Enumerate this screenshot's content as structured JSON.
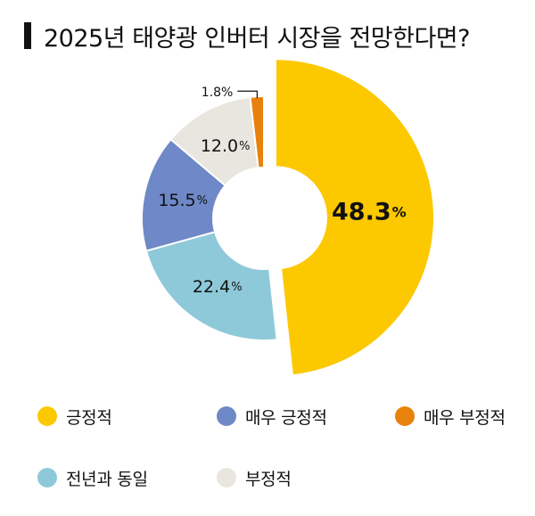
{
  "title": "2025년 태양광 인버터 시장을 전망한다면?",
  "chart_data": {
    "type": "pie",
    "title": "2025년 태양광 인버터 시장을 전망한다면?",
    "slices": [
      {
        "label": "긍정적",
        "value": 48.3,
        "display": "48.3",
        "color": "#fcc800"
      },
      {
        "label": "전년과 동일",
        "value": 22.4,
        "display": "22.4",
        "color": "#8ec9d9"
      },
      {
        "label": "매우 긍정적",
        "value": 15.5,
        "display": "15.5",
        "color": "#6f88c8"
      },
      {
        "label": "부정적",
        "value": 12.0,
        "display": "12.0",
        "color": "#e8e6df"
      },
      {
        "label": "매우 부정적",
        "value": 1.8,
        "display": "1.8",
        "color": "#e8820c"
      }
    ],
    "unit": "%",
    "legend_position": "bottom"
  },
  "legend": [
    {
      "label": "긍정적",
      "color": "#fcc800"
    },
    {
      "label": "매우 긍정적",
      "color": "#6f88c8"
    },
    {
      "label": "매우 부정적",
      "color": "#e8820c"
    },
    {
      "label": "전년과 동일",
      "color": "#8ec9d9"
    },
    {
      "label": "부정적",
      "color": "#e8e6df"
    }
  ]
}
